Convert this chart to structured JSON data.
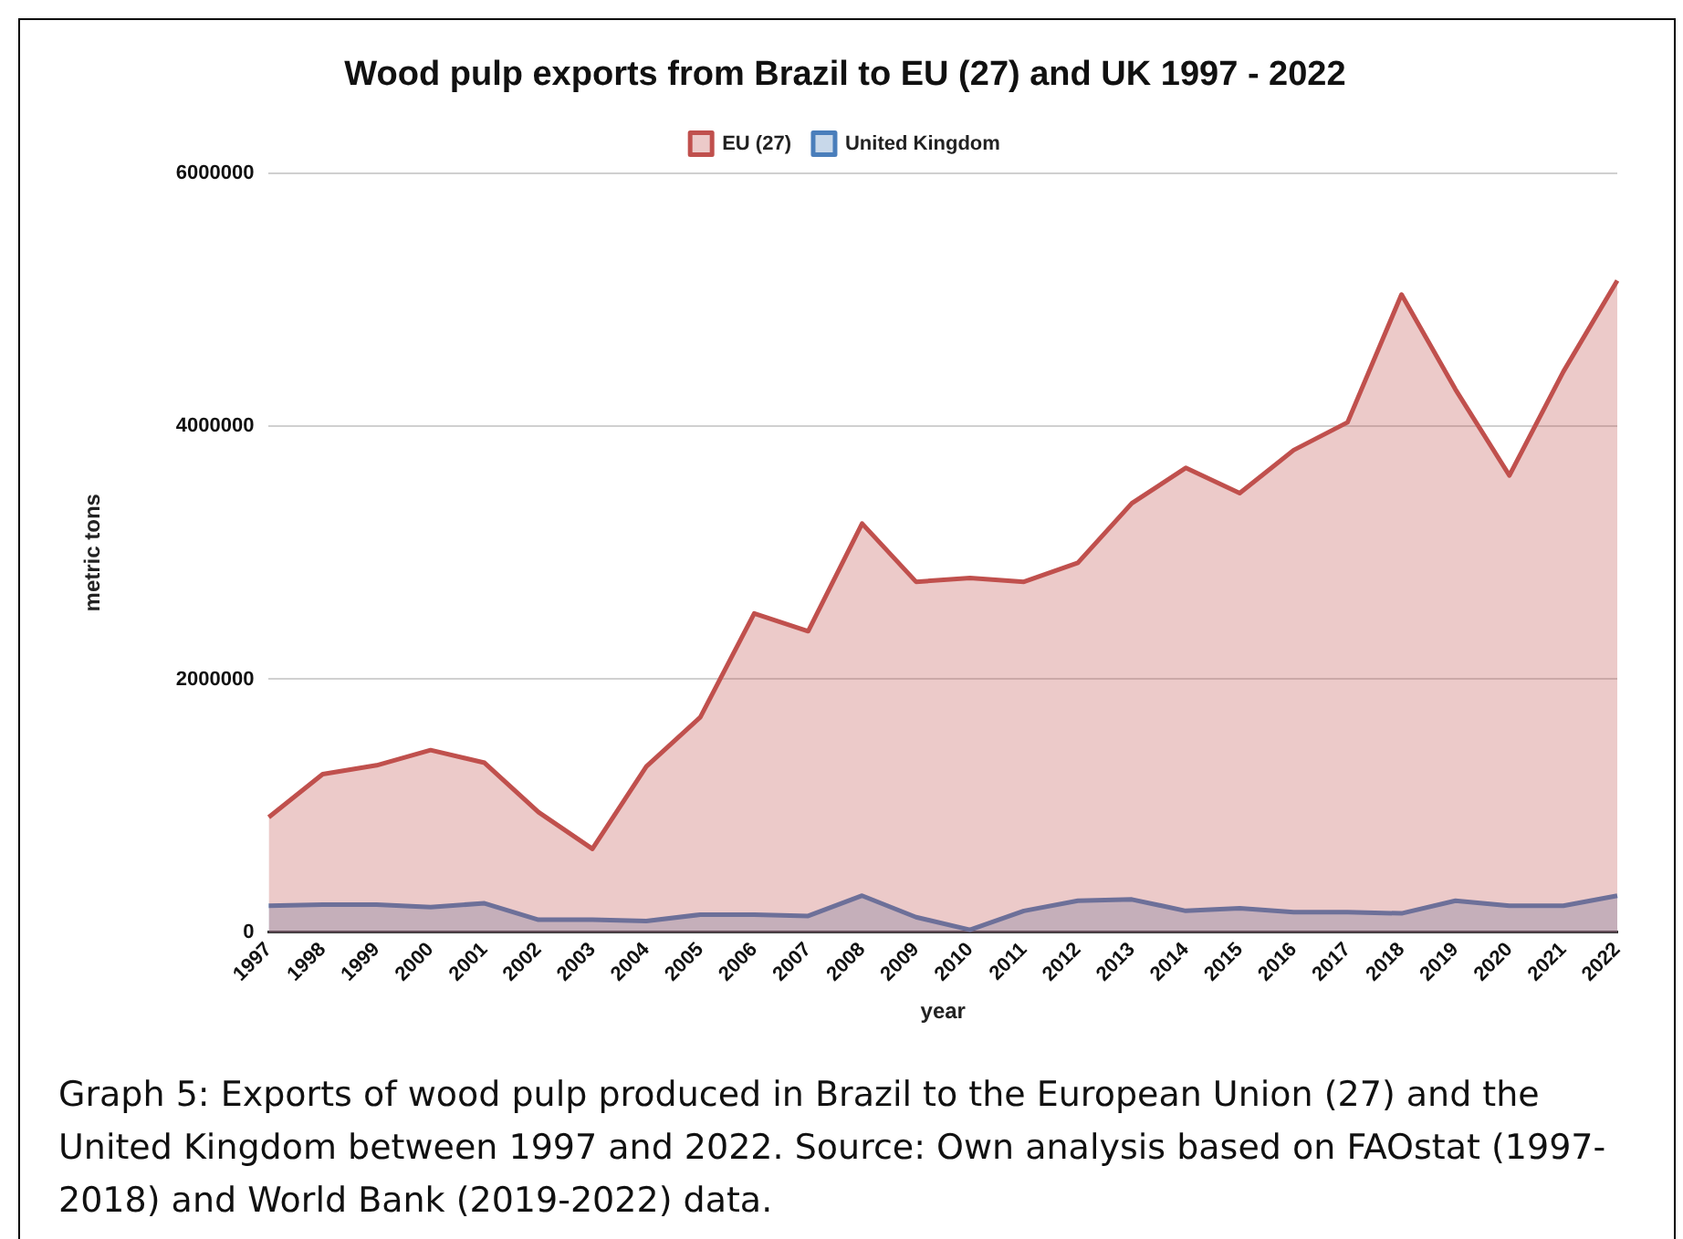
{
  "chart_data": {
    "type": "area",
    "title": "Wood pulp exports from Brazil to EU (27) and UK 1997 - 2022",
    "xlabel": "year",
    "ylabel": "metric tons",
    "categories": [
      "1997",
      "1998",
      "1999",
      "2000",
      "2001",
      "2002",
      "2003",
      "2004",
      "2005",
      "2006",
      "2007",
      "2008",
      "2009",
      "2010",
      "2011",
      "2012",
      "2013",
      "2014",
      "2015",
      "2016",
      "2017",
      "2018",
      "2019",
      "2020",
      "2021",
      "2022"
    ],
    "series": [
      {
        "name": "EU (27)",
        "color": "#c0504d",
        "values": [
          910000,
          1250000,
          1320000,
          1440000,
          1340000,
          950000,
          660000,
          1310000,
          1700000,
          2520000,
          2380000,
          3230000,
          2770000,
          2800000,
          2770000,
          2920000,
          3390000,
          3670000,
          3470000,
          3810000,
          4030000,
          5040000,
          4290000,
          3610000,
          4430000,
          5150000
        ]
      },
      {
        "name": "United Kingdom",
        "color": "#4a7ebb",
        "values": [
          210000,
          220000,
          220000,
          200000,
          230000,
          100000,
          100000,
          90000,
          140000,
          140000,
          130000,
          290000,
          120000,
          20000,
          170000,
          250000,
          260000,
          170000,
          190000,
          160000,
          160000,
          150000,
          250000,
          210000,
          210000,
          290000
        ]
      }
    ],
    "ylim": [
      0,
      6000000
    ],
    "yticks": [
      0,
      2000000,
      4000000,
      6000000
    ],
    "grid": "y",
    "legend": "top",
    "annotations": [
      "Graph 5:  Exports of wood pulp produced in Brazil to the European Union (27) and the United Kingdom between 1997 and 2022. Source: Own analysis based on FAOstat (1997-2018) and World Bank (2019-2022) data."
    ]
  }
}
